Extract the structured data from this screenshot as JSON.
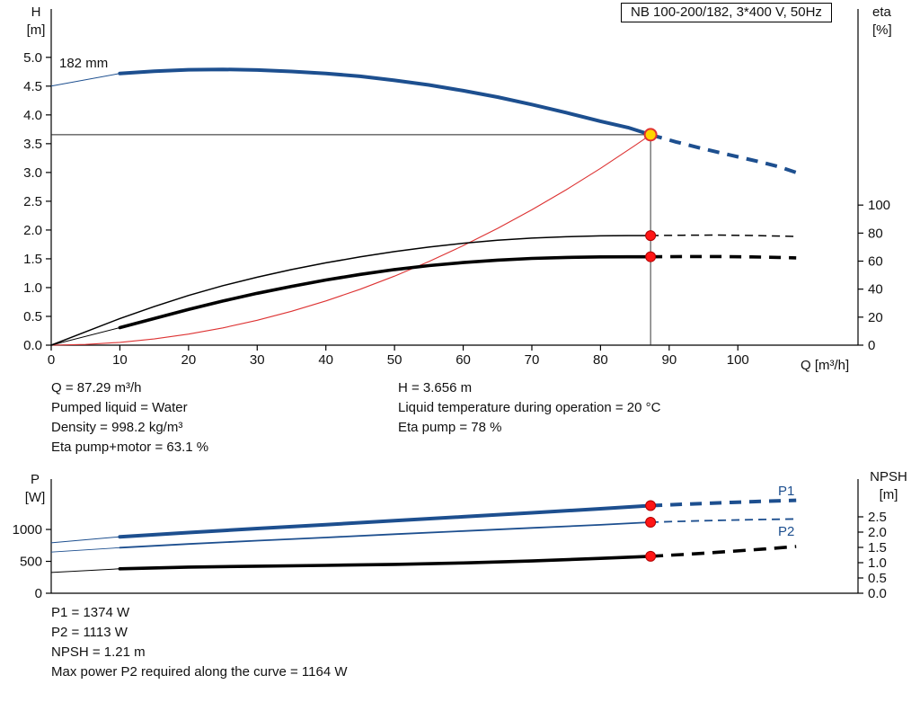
{
  "header": {
    "model": "NB 100-200/182, 3*400 V, 50Hz"
  },
  "accent_colors": {
    "curve_blue": "#1d4f8f",
    "system_red": "#dd3333",
    "dot_red": "#ff1616",
    "duty_yellow": "#ffd400"
  },
  "details": {
    "left": [
      "Q = 87.29 m³/h",
      "Pumped liquid = Water",
      "Density = 998.2 kg/m³",
      "Eta pump+motor = 63.1 %"
    ],
    "right": [
      "H = 3.656 m",
      "Liquid temperature during operation = 20 °C",
      "Eta pump = 78 %"
    ]
  },
  "footer": {
    "lines": [
      "P1 = 1374 W",
      "P2 = 1113 W",
      "NPSH = 1.21 m",
      "Max power P2 required along the curve = 1164 W"
    ]
  },
  "chart_data": [
    {
      "type": "line",
      "name": "qh-performance-chart",
      "x": {
        "label": "Q [m³/h]",
        "min": 0,
        "max": 117.5,
        "ticks": [
          0,
          10,
          20,
          30,
          40,
          50,
          60,
          70,
          80,
          90,
          100
        ]
      },
      "y_left": {
        "label_lines": [
          "H",
          "[m]"
        ],
        "min": 0,
        "max": 5.84,
        "ticks": [
          0,
          0.5,
          1,
          1.5,
          2,
          2.5,
          3,
          3.5,
          4,
          4.5,
          5
        ],
        "tick_labels": [
          "0.0",
          "0.5",
          "1.0",
          "1.5",
          "2.0",
          "2.5",
          "3.0",
          "3.5",
          "4.0",
          "4.5",
          "5.0"
        ]
      },
      "y_right": {
        "label_lines": [
          "eta",
          "[%]"
        ],
        "min": 0,
        "max": 240,
        "ticks": [
          0,
          20,
          40,
          60,
          80,
          100
        ],
        "tick_labels": [
          "0",
          "20",
          "40",
          "60",
          "80",
          "100"
        ]
      },
      "operating_point": {
        "q": 87.29,
        "h": 3.656,
        "eta_pump": 78,
        "eta_pump_motor": 63.1
      },
      "crosshair": {
        "q": 87.29,
        "h": 3.656
      },
      "series": [
        {
          "name": "system-curve",
          "axis": "left",
          "color": "#dd3333",
          "width": 1.1,
          "solid": [
            [
              0,
              0
            ],
            [
              5,
              0.012
            ],
            [
              10,
              0.048
            ],
            [
              15,
              0.108
            ],
            [
              20,
              0.192
            ],
            [
              25,
              0.3
            ],
            [
              30,
              0.432
            ],
            [
              35,
              0.588
            ],
            [
              40,
              0.768
            ],
            [
              45,
              0.972
            ],
            [
              50,
              1.2
            ],
            [
              55,
              1.452
            ],
            [
              60,
              1.728
            ],
            [
              65,
              2.028
            ],
            [
              70,
              2.352
            ],
            [
              75,
              2.7
            ],
            [
              80,
              3.072
            ],
            [
              85,
              3.468
            ],
            [
              87.29,
              3.656
            ]
          ]
        },
        {
          "name": "eta-pump",
          "axis": "right",
          "color": "#000000",
          "width": 1.5,
          "dash": "9 6",
          "solid": [
            [
              0,
              0
            ],
            [
              5,
              9.5
            ],
            [
              10,
              19
            ],
            [
              15,
              27.5
            ],
            [
              20,
              35.5
            ],
            [
              25,
              42.5
            ],
            [
              30,
              48.5
            ],
            [
              35,
              54
            ],
            [
              40,
              58.8
            ],
            [
              45,
              63
            ],
            [
              50,
              66.8
            ],
            [
              55,
              70
            ],
            [
              60,
              72.8
            ],
            [
              65,
              74.9
            ],
            [
              70,
              76.4
            ],
            [
              75,
              77.4
            ],
            [
              80,
              78
            ],
            [
              84,
              78.2
            ],
            [
              87.29,
              78.2
            ]
          ],
          "dashed": [
            [
              87.29,
              78.2
            ],
            [
              92,
              78.5
            ],
            [
              97,
              78.6
            ],
            [
              102,
              78.3
            ],
            [
              106,
              77.9
            ],
            [
              108.5,
              77.6
            ]
          ]
        },
        {
          "name": "eta-pump-motor",
          "axis": "right",
          "color": "#000000",
          "width": 3.6,
          "dash": "13 9",
          "lead_width": 1,
          "lead": [
            [
              0,
              0
            ],
            [
              10,
              12.5
            ]
          ],
          "solid": [
            [
              10,
              12.5
            ],
            [
              15,
              19
            ],
            [
              20,
              25.5
            ],
            [
              25,
              31.5
            ],
            [
              30,
              37
            ],
            [
              35,
              42
            ],
            [
              40,
              46.5
            ],
            [
              45,
              50.5
            ],
            [
              50,
              54
            ],
            [
              55,
              56.8
            ],
            [
              60,
              59
            ],
            [
              65,
              60.7
            ],
            [
              70,
              61.9
            ],
            [
              75,
              62.6
            ],
            [
              80,
              63
            ],
            [
              84,
              63.1
            ],
            [
              87.29,
              63.1
            ]
          ],
          "dashed": [
            [
              87.29,
              63.1
            ],
            [
              92,
              63.3
            ],
            [
              97,
              63.3
            ],
            [
              102,
              63
            ],
            [
              106,
              62.6
            ],
            [
              108.5,
              62.3
            ]
          ]
        },
        {
          "name": "head-curve",
          "label": "182 mm",
          "axis": "left",
          "color": "#1d4f8f",
          "width": 4,
          "dash": "13 9",
          "lead_width": 1,
          "lead": [
            [
              0,
              4.5
            ],
            [
              10,
              4.72
            ]
          ],
          "solid": [
            [
              10,
              4.72
            ],
            [
              15,
              4.76
            ],
            [
              20,
              4.785
            ],
            [
              25,
              4.79
            ],
            [
              30,
              4.78
            ],
            [
              35,
              4.755
            ],
            [
              40,
              4.72
            ],
            [
              45,
              4.67
            ],
            [
              50,
              4.6
            ],
            [
              55,
              4.52
            ],
            [
              60,
              4.42
            ],
            [
              65,
              4.31
            ],
            [
              70,
              4.18
            ],
            [
              75,
              4.04
            ],
            [
              80,
              3.89
            ],
            [
              84,
              3.78
            ],
            [
              87.29,
              3.656
            ]
          ],
          "dashed": [
            [
              87.29,
              3.656
            ],
            [
              91,
              3.53
            ],
            [
              95,
              3.41
            ],
            [
              99,
              3.3
            ],
            [
              103,
              3.19
            ],
            [
              106,
              3.1
            ],
            [
              108.5,
              3.0
            ]
          ]
        }
      ],
      "markers": [
        {
          "q": 87.29,
          "v": 3.656,
          "axis": "left",
          "style": "duty"
        },
        {
          "q": 87.29,
          "v": 78.2,
          "axis": "right",
          "style": "dot"
        },
        {
          "q": 87.29,
          "v": 63.1,
          "axis": "right",
          "style": "dot"
        }
      ]
    },
    {
      "type": "line",
      "name": "power-npsh-chart",
      "x": {
        "label": "",
        "min": 0,
        "max": 117.5,
        "ticks": []
      },
      "y_left": {
        "label_lines": [
          "P",
          "[W]"
        ],
        "min": 0,
        "max": 1790,
        "ticks": [
          0,
          500,
          1000
        ],
        "tick_labels": [
          "0",
          "500",
          "1000"
        ]
      },
      "y_right": {
        "label_lines": [
          "NPSH",
          "[m]"
        ],
        "min": 0,
        "max": 3.735,
        "ticks": [
          0,
          0.5,
          1,
          1.5,
          2,
          2.5
        ],
        "tick_labels": [
          "0.0",
          "0.5",
          "1.0",
          "1.5",
          "2.0",
          "2.5"
        ]
      },
      "operating_point": {
        "q": 87.29,
        "p1": 1374,
        "p2": 1113,
        "npsh": 1.21,
        "max_p2_along_curve": 1164
      },
      "series": [
        {
          "name": "p1-power",
          "label": "P1",
          "axis": "left",
          "color": "#1d4f8f",
          "width": 4,
          "dash": "13 9",
          "lead_width": 1,
          "lead": [
            [
              0,
              790
            ],
            [
              10,
              885
            ]
          ],
          "solid": [
            [
              10,
              885
            ],
            [
              20,
              952
            ],
            [
              30,
              1015
            ],
            [
              40,
              1075
            ],
            [
              50,
              1138
            ],
            [
              60,
              1200
            ],
            [
              70,
              1262
            ],
            [
              80,
              1325
            ],
            [
              87.29,
              1374
            ]
          ],
          "dashed": [
            [
              87.29,
              1374
            ],
            [
              93,
              1400
            ],
            [
              99,
              1424
            ],
            [
              104,
              1443
            ],
            [
              108.5,
              1458
            ]
          ]
        },
        {
          "name": "p2-power",
          "label": "P2",
          "axis": "left",
          "color": "#1d4f8f",
          "width": 1.8,
          "dash": "9 6",
          "lead_width": 0.9,
          "lead": [
            [
              0,
              645
            ],
            [
              10,
              715
            ]
          ],
          "solid": [
            [
              10,
              715
            ],
            [
              20,
              772
            ],
            [
              30,
              824
            ],
            [
              40,
              874
            ],
            [
              50,
              926
            ],
            [
              60,
              976
            ],
            [
              70,
              1024
            ],
            [
              80,
              1072
            ],
            [
              87.29,
              1113
            ]
          ],
          "dashed": [
            [
              87.29,
              1113
            ],
            [
              93,
              1132
            ],
            [
              99,
              1147
            ],
            [
              104,
              1157
            ],
            [
              108.5,
              1164
            ]
          ]
        },
        {
          "name": "npsh-curve",
          "axis": "right",
          "color": "#000000",
          "width": 3.6,
          "dash": "14 9",
          "lead_width": 1,
          "lead": [
            [
              0,
              0.68
            ],
            [
              10,
              0.8
            ]
          ],
          "solid": [
            [
              10,
              0.8
            ],
            [
              20,
              0.855
            ],
            [
              30,
              0.885
            ],
            [
              40,
              0.912
            ],
            [
              50,
              0.945
            ],
            [
              60,
              0.99
            ],
            [
              70,
              1.055
            ],
            [
              80,
              1.14
            ],
            [
              87.29,
              1.21
            ]
          ],
          "dashed": [
            [
              87.29,
              1.21
            ],
            [
              93,
              1.28
            ],
            [
              99,
              1.37
            ],
            [
              104,
              1.45
            ],
            [
              108.5,
              1.53
            ]
          ]
        }
      ],
      "markers": [
        {
          "q": 87.29,
          "v": 1374,
          "axis": "left",
          "style": "dot"
        },
        {
          "q": 87.29,
          "v": 1113,
          "axis": "left",
          "style": "dot"
        },
        {
          "q": 87.29,
          "v": 1.21,
          "axis": "right",
          "style": "dot"
        }
      ]
    }
  ]
}
